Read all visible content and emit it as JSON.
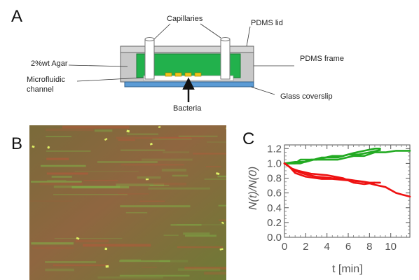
{
  "panels": {
    "a": {
      "letter": "A"
    },
    "b": {
      "letter": "B"
    },
    "c": {
      "letter": "C"
    }
  },
  "schematic": {
    "capillaries_label": "Capillaries",
    "pdms_lid_label": "PDMS lid",
    "agar_label": "2%wt Agar",
    "pdms_frame_label": "PDMS frame",
    "microfluidic_label_line1": "Microfluidic",
    "microfluidic_label_line2": "channel",
    "glass_label": "Glass coverslip",
    "bacteria_label": "Bacteria",
    "colors": {
      "frame": "#c8c8c8",
      "agar": "#22b14c",
      "glass": "#5b9bd5",
      "bacteria": "#f0c419",
      "capillary": "#ffffff"
    }
  },
  "micrograph": {
    "description_colors": {
      "base": "#8a6a3a",
      "green": "#7fc24a",
      "red": "#c2553a",
      "spot": "#e8ff6a"
    }
  },
  "chart_data": {
    "type": "line",
    "xlabel": "t [min]",
    "ylabel": "N(t)/N(0)",
    "xlim": [
      0,
      11.8
    ],
    "ylim": [
      0,
      1.25
    ],
    "xticks": [
      "0",
      "2",
      "4",
      "6",
      "8",
      "10"
    ],
    "yticks": [
      "0.0",
      "0.2",
      "0.4",
      "0.6",
      "0.8",
      "1.0",
      "1.2"
    ],
    "grid": false,
    "series": [
      {
        "color": "#22aa22",
        "x": [
          0,
          1,
          1.5,
          3,
          4.5,
          5.5,
          6.5,
          7.5,
          8.5,
          9
        ],
        "y": [
          1.0,
          1.0,
          1.05,
          1.05,
          1.1,
          1.1,
          1.14,
          1.17,
          1.2,
          1.2
        ]
      },
      {
        "color": "#22aa22",
        "x": [
          0,
          1.5,
          2.5,
          4,
          5,
          6.5,
          7.5,
          8.5,
          9.5,
          10.5,
          11.8
        ],
        "y": [
          1.0,
          1.0,
          1.05,
          1.05,
          1.05,
          1.1,
          1.1,
          1.15,
          1.15,
          1.17,
          1.17
        ]
      },
      {
        "color": "#22aa22",
        "x": [
          0,
          1,
          2,
          3.5,
          5,
          6,
          7,
          8,
          9
        ],
        "y": [
          1.0,
          1.02,
          1.02,
          1.08,
          1.08,
          1.12,
          1.12,
          1.15,
          1.18
        ]
      },
      {
        "color": "#ee1111",
        "x": [
          0,
          0.5,
          1,
          2,
          3.5,
          4.5,
          6,
          7.5,
          8.5,
          9.5,
          10.5,
          11,
          11.8
        ],
        "y": [
          1.0,
          0.95,
          0.87,
          0.82,
          0.79,
          0.79,
          0.77,
          0.75,
          0.71,
          0.68,
          0.6,
          0.58,
          0.55
        ]
      },
      {
        "color": "#ee1111",
        "x": [
          0,
          0.7,
          1.3,
          2.5,
          4,
          5.5,
          6.5,
          7.5,
          8.5
        ],
        "y": [
          1.0,
          0.93,
          0.9,
          0.86,
          0.84,
          0.8,
          0.74,
          0.72,
          0.74
        ]
      },
      {
        "color": "#ee1111",
        "x": [
          0,
          1,
          2,
          3,
          4.5,
          6,
          7,
          8,
          9
        ],
        "y": [
          1.0,
          0.9,
          0.85,
          0.82,
          0.8,
          0.78,
          0.76,
          0.74,
          0.74
        ]
      }
    ]
  }
}
